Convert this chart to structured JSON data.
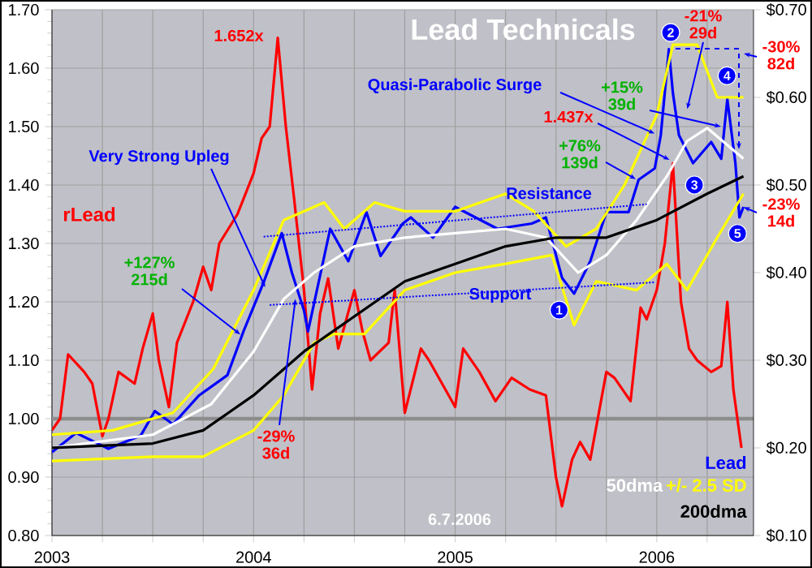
{
  "chart_data": {
    "type": "line",
    "title": "Lead Technicals",
    "xlim": [
      "2003-01-01",
      "2006-06-25"
    ],
    "xticks": [
      {
        "value": "2003-01-01",
        "label": "2003"
      },
      {
        "value": "2003-04-01",
        "label": null
      },
      {
        "value": "2003-07-01",
        "label": null
      },
      {
        "value": "2003-10-01",
        "label": null
      },
      {
        "value": "2004-01-01",
        "label": "2004"
      },
      {
        "value": "2004-04-01",
        "label": null
      },
      {
        "value": "2004-07-01",
        "label": null
      },
      {
        "value": "2004-10-01",
        "label": null
      },
      {
        "value": "2005-01-01",
        "label": "2005"
      },
      {
        "value": "2005-04-01",
        "label": null
      },
      {
        "value": "2005-07-01",
        "label": null
      },
      {
        "value": "2005-10-01",
        "label": null
      },
      {
        "value": "2006-01-01",
        "label": "2006"
      },
      {
        "value": "2006-04-01",
        "label": null
      }
    ],
    "ylim": [
      0.8,
      1.7
    ],
    "yticks": [
      {
        "value": 0.8,
        "label": "0.80"
      },
      {
        "value": 0.9,
        "label": "0.90"
      },
      {
        "value": 1.0,
        "label": "1.00"
      },
      {
        "value": 1.1,
        "label": "1.10"
      },
      {
        "value": 1.2,
        "label": "1.20"
      },
      {
        "value": 1.3,
        "label": "1.30"
      },
      {
        "value": 1.4,
        "label": "1.40"
      },
      {
        "value": 1.5,
        "label": "1.50"
      },
      {
        "value": 1.6,
        "label": "1.60"
      },
      {
        "value": 1.7,
        "label": "1.70"
      }
    ],
    "y2lim": [
      0.1,
      0.7
    ],
    "y2ticks": [
      {
        "value": 0.1,
        "label": "$0.10"
      },
      {
        "value": 0.2,
        "label": "$0.20"
      },
      {
        "value": 0.3,
        "label": "$0.30"
      },
      {
        "value": 0.4,
        "label": "$0.40"
      },
      {
        "value": 0.5,
        "label": "$0.50"
      },
      {
        "value": 0.6,
        "label": "$0.60"
      },
      {
        "value": 0.7,
        "label": "$0.70"
      }
    ],
    "grid": true,
    "legend": "bottom right",
    "ref_lines": [
      {
        "axis": "y",
        "value": 1.0,
        "color": "#8c8c8c"
      }
    ],
    "series": [
      {
        "name": "rLead",
        "color": "#ff0000",
        "x": [
          "2003-01-01",
          "2003-01-15",
          "2003-02-01",
          "2003-03-01",
          "2003-03-15",
          "2003-04-01",
          "2003-04-15",
          "2003-05-01",
          "2003-06-01",
          "2003-06-15",
          "2003-07-01",
          "2003-07-15",
          "2003-08-01",
          "2003-08-15",
          "2003-09-15",
          "2003-10-01",
          "2003-10-15",
          "2003-11-01",
          "2003-12-01",
          "2004-01-01",
          "2004-01-15",
          "2004-02-01",
          "2004-02-15",
          "2004-03-01",
          "2004-03-15",
          "2004-04-01",
          "2004-04-15",
          "2004-05-01",
          "2004-05-15",
          "2004-06-01",
          "2004-07-01",
          "2004-07-15",
          "2004-08-01",
          "2004-09-01",
          "2004-09-15",
          "2004-10-01",
          "2004-11-01",
          "2004-11-15",
          "2005-01-01",
          "2005-01-15",
          "2005-02-15",
          "2005-03-15",
          "2005-04-15",
          "2005-05-15",
          "2005-06-15",
          "2005-07-01",
          "2005-07-15",
          "2005-08-01",
          "2005-08-15",
          "2005-09-01",
          "2005-10-01",
          "2005-10-15",
          "2005-11-15",
          "2005-12-01",
          "2005-12-15",
          "2006-01-01",
          "2006-01-15",
          "2006-02-01",
          "2006-02-12",
          "2006-03-01",
          "2006-03-15",
          "2006-04-10",
          "2006-04-28",
          "2006-05-10",
          "2006-05-20",
          "2006-06-05"
        ],
        "values": [
          0.98,
          1.0,
          1.11,
          1.08,
          1.06,
          0.97,
          1.0,
          1.08,
          1.06,
          1.12,
          1.18,
          1.1,
          1.02,
          1.13,
          1.2,
          1.26,
          1.22,
          1.3,
          1.35,
          1.42,
          1.48,
          1.5,
          1.652,
          1.5,
          1.38,
          1.22,
          1.05,
          1.18,
          1.24,
          1.12,
          1.22,
          1.15,
          1.1,
          1.13,
          1.22,
          1.01,
          1.12,
          1.1,
          1.02,
          1.12,
          1.08,
          1.03,
          1.07,
          1.05,
          1.04,
          0.9,
          0.85,
          0.93,
          0.96,
          0.93,
          1.08,
          1.07,
          1.03,
          1.19,
          1.17,
          1.22,
          1.3,
          1.437,
          1.2,
          1.12,
          1.1,
          1.08,
          1.09,
          1.2,
          1.05,
          0.95
        ]
      },
      {
        "name": "Lead",
        "color": "#0000ff",
        "axis": "y2",
        "x": [
          "2003-01-01",
          "2003-02-15",
          "2003-04-15",
          "2003-06-10",
          "2003-07-07",
          "2003-08-07",
          "2003-09-25",
          "2003-11-15",
          "2003-12-15",
          "2004-01-20",
          "2004-02-20",
          "2004-03-10",
          "2004-04-01",
          "2004-04-10",
          "2004-05-20",
          "2004-06-20",
          "2004-07-25",
          "2004-08-20",
          "2004-09-28",
          "2004-10-12",
          "2004-11-20",
          "2005-01-01",
          "2005-03-20",
          "2005-05-20",
          "2005-06-15",
          "2005-07-15",
          "2005-08-05",
          "2005-09-01",
          "2005-10-01",
          "2005-11-10",
          "2005-11-28",
          "2005-12-28",
          "2006-01-08",
          "2006-01-22",
          "2006-02-01",
          "2006-02-10",
          "2006-03-08",
          "2006-04-10",
          "2006-04-28",
          "2006-05-08",
          "2006-05-22",
          "2006-05-30",
          "2006-06-07"
        ],
        "values": [
          0.195,
          0.217,
          0.199,
          0.214,
          0.242,
          0.227,
          0.26,
          0.283,
          0.333,
          0.389,
          0.445,
          0.4,
          0.357,
          0.333,
          0.45,
          0.413,
          0.469,
          0.419,
          0.456,
          0.463,
          0.44,
          0.475,
          0.45,
          0.456,
          0.463,
          0.394,
          0.376,
          0.413,
          0.469,
          0.469,
          0.506,
          0.519,
          0.557,
          0.655,
          0.605,
          0.557,
          0.525,
          0.549,
          0.53,
          0.598,
          0.525,
          0.463,
          0.475
        ]
      },
      {
        "name": "50dma",
        "color": "#ffffff",
        "axis": "y2",
        "x": [
          "2003-01-01",
          "2003-07-01",
          "2003-10-15",
          "2004-01-01",
          "2004-02-25",
          "2004-04-20",
          "2004-07-01",
          "2004-10-01",
          "2005-01-01",
          "2005-04-01",
          "2005-06-15",
          "2005-08-10",
          "2005-10-01",
          "2005-11-25",
          "2006-01-20",
          "2006-02-25",
          "2006-04-01",
          "2006-06-07"
        ],
        "values": [
          0.2,
          0.215,
          0.25,
          0.31,
          0.37,
          0.4,
          0.43,
          0.44,
          0.445,
          0.45,
          0.44,
          0.4,
          0.42,
          0.46,
          0.51,
          0.55,
          0.565,
          0.53
        ]
      },
      {
        "name": "+/- 2.5 SD",
        "color": "#ffff00",
        "axis": "y2",
        "x": [
          "2003-01-01",
          "2003-04-20",
          "2003-08-07",
          "2003-10-20",
          "2004-01-01",
          "2004-02-25",
          "2004-04-01",
          "2004-05-08",
          "2004-06-15",
          "2004-08-07",
          "2004-10-01",
          "2005-01-01",
          "2005-04-01",
          "2005-05-25",
          "2005-07-20",
          "2005-09-15",
          "2005-11-05",
          "2006-01-01",
          "2006-01-30",
          "2006-03-15",
          "2006-04-20",
          "2006-06-07"
        ],
        "values": [
          0.215,
          0.22,
          0.24,
          0.29,
          0.38,
          0.46,
          0.47,
          0.48,
          0.45,
          0.48,
          0.47,
          0.47,
          0.49,
          0.47,
          0.43,
          0.45,
          0.5,
          0.58,
          0.66,
          0.66,
          0.6,
          0.6
        ]
      },
      {
        "color": "#ffff00",
        "axis": "y2",
        "x": [
          "2003-01-01",
          "2003-07-01",
          "2003-10-01",
          "2004-01-01",
          "2004-02-25",
          "2004-04-20",
          "2004-05-25",
          "2004-07-20",
          "2004-10-01",
          "2005-01-01",
          "2005-04-01",
          "2005-06-25",
          "2005-08-05",
          "2005-09-15",
          "2005-11-25",
          "2006-01-20",
          "2006-02-25",
          "2006-04-20",
          "2006-06-07"
        ],
        "values": [
          0.185,
          0.19,
          0.19,
          0.22,
          0.26,
          0.32,
          0.33,
          0.33,
          0.38,
          0.4,
          0.41,
          0.42,
          0.34,
          0.39,
          0.38,
          0.41,
          0.38,
          0.44,
          0.49
        ]
      },
      {
        "name": "200dma",
        "color": "#000000",
        "axis": "y2",
        "x": [
          "2003-01-01",
          "2003-07-01",
          "2003-10-01",
          "2004-01-01",
          "2004-04-01",
          "2004-07-01",
          "2004-10-01",
          "2005-01-01",
          "2005-04-01",
          "2005-07-01",
          "2005-10-01",
          "2006-01-01",
          "2006-04-01",
          "2006-06-07"
        ],
        "values": [
          0.2,
          0.205,
          0.22,
          0.26,
          0.31,
          0.35,
          0.39,
          0.41,
          0.43,
          0.44,
          0.44,
          0.46,
          0.49,
          0.51
        ]
      },
      {
        "color": "#0000ff",
        "axis": "y2",
        "line_style": "dotted",
        "x": [
          "2004-01-20",
          "2005-12-15"
        ],
        "values": [
          0.441,
          0.478
        ]
      },
      {
        "color": "#0000ff",
        "axis": "y2",
        "line_style": "dotted",
        "x": [
          "2004-02-01",
          "2005-12-28"
        ],
        "values": [
          0.363,
          0.389
        ]
      }
    ],
    "annotations": [
      "1.652x",
      {
        "text": "Very Strong Upleg",
        "x": "2004-01-22",
        "y": 1.225
      },
      {
        "text": "+127% 215d",
        "x": "2003-12-08",
        "y": 1.144
      },
      {
        "text": "-29% 36d",
        "x": "2004-03-17",
        "y": 1.205
      },
      {
        "text": "Quasi-Parabolic Surge",
        "x": "2005-12-28",
        "y": 1.488
      },
      {
        "text": "1.437x",
        "x": "2006-01-24",
        "y": 1.443
      },
      {
        "text": "+76% 139d",
        "x": "2005-11-24",
        "y": 1.41
      },
      {
        "text": "+15% 39d",
        "x": "2006-04-27",
        "y": 1.5
      },
      {
        "text": "-21% 29d",
        "x": "2006-02-25",
        "y": 1.53
      },
      "-30% 82d",
      {
        "text": "-23% 14d",
        "x": "2006-06-07",
        "y": 1.362
      },
      "Resistance",
      "Support",
      {
        "text": "1",
        "x": "2005-07-08",
        "y": 1.186
      },
      {
        "text": "2",
        "x": "2006-01-26",
        "y": 1.661
      },
      {
        "text": "3",
        "x": "2006-03-10",
        "y": 1.4
      },
      {
        "text": "4",
        "x": "2006-05-08",
        "y": 1.587
      },
      {
        "text": "5",
        "x": "2006-05-27",
        "y": 1.317
      },
      "6.7.2006"
    ]
  }
}
